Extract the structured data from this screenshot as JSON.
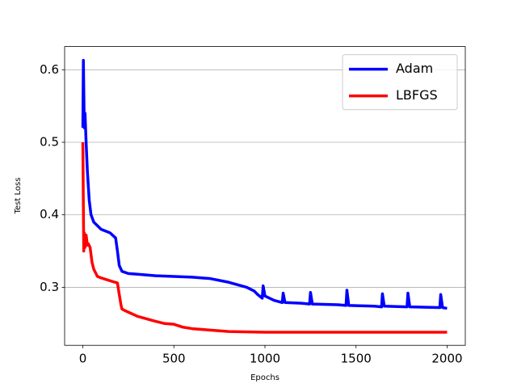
{
  "chart_data": {
    "type": "line",
    "xlabel": "Epochs",
    "ylabel": "Test Loss",
    "xlim": [
      -100,
      2100
    ],
    "xticks": [
      0,
      500,
      1000,
      1500,
      2000
    ],
    "ylim": [
      0.22,
      0.632
    ],
    "yticks": [
      0.3,
      0.4,
      0.5,
      0.6
    ],
    "grid": "y",
    "legend": "upper right",
    "series": [
      {
        "name": "Adam",
        "color": "#0000ff",
        "x": [
          0,
          3,
          8,
          12,
          18,
          25,
          35,
          45,
          60,
          100,
          150,
          180,
          190,
          200,
          215,
          250,
          300,
          400,
          500,
          600,
          700,
          800,
          900,
          940,
          960,
          985,
          990,
          1000,
          1050,
          1095,
          1100,
          1110,
          1200,
          1245,
          1250,
          1260,
          1400,
          1445,
          1450,
          1460,
          1600,
          1640,
          1645,
          1655,
          1780,
          1785,
          1795,
          1960,
          1965,
          1975,
          2000
        ],
        "values": [
          0.52,
          0.613,
          0.52,
          0.54,
          0.5,
          0.46,
          0.42,
          0.4,
          0.39,
          0.38,
          0.375,
          0.368,
          0.35,
          0.33,
          0.322,
          0.319,
          0.318,
          0.316,
          0.315,
          0.314,
          0.312,
          0.307,
          0.3,
          0.295,
          0.29,
          0.285,
          0.302,
          0.288,
          0.282,
          0.279,
          0.292,
          0.279,
          0.278,
          0.277,
          0.293,
          0.277,
          0.276,
          0.275,
          0.296,
          0.275,
          0.274,
          0.273,
          0.291,
          0.274,
          0.273,
          0.292,
          0.273,
          0.272,
          0.29,
          0.272,
          0.271
        ]
      },
      {
        "name": "LBFGS",
        "color": "#ff0000",
        "x": [
          0,
          5,
          8,
          12,
          18,
          25,
          30,
          40,
          50,
          60,
          80,
          100,
          150,
          190,
          200,
          210,
          215,
          230,
          300,
          400,
          450,
          500,
          550,
          600,
          700,
          800,
          1000,
          1500,
          2000
        ],
        "values": [
          0.5,
          0.35,
          0.375,
          0.355,
          0.372,
          0.358,
          0.36,
          0.355,
          0.335,
          0.325,
          0.315,
          0.313,
          0.309,
          0.306,
          0.29,
          0.275,
          0.27,
          0.268,
          0.26,
          0.253,
          0.25,
          0.249,
          0.245,
          0.243,
          0.241,
          0.239,
          0.238,
          0.238,
          0.238
        ]
      }
    ]
  }
}
